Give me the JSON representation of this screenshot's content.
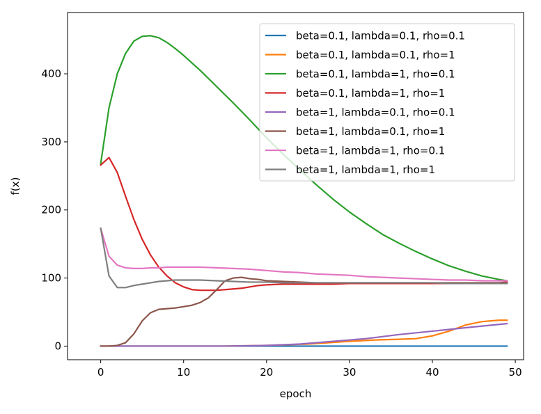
{
  "chart_data": {
    "type": "line",
    "title": "",
    "xlabel": "epoch",
    "ylabel": "f(x)",
    "xlim": [
      -4,
      51
    ],
    "ylim": [
      -20,
      490
    ],
    "xticks": [
      0,
      10,
      20,
      30,
      40,
      50
    ],
    "yticks": [
      0,
      100,
      200,
      300,
      400
    ],
    "grid": false,
    "legend_position": "top-right",
    "series": [
      {
        "name": "beta=0.1, lambda=0.1, rho=0.1",
        "color": "#1f77b4",
        "x": [
          0,
          10,
          20,
          30,
          40,
          49
        ],
        "y": [
          0,
          0,
          0,
          0,
          0,
          0
        ]
      },
      {
        "name": "beta=0.1, lambda=0.1, rho=1",
        "color": "#ff7f0e",
        "x": [
          0,
          5,
          10,
          15,
          20,
          25,
          30,
          33,
          36,
          38,
          40,
          42,
          44,
          46,
          48,
          49
        ],
        "y": [
          0,
          0,
          0,
          0,
          1,
          3,
          7,
          9,
          10,
          11,
          15,
          22,
          31,
          36,
          38,
          38
        ]
      },
      {
        "name": "beta=0.1, lambda=1, rho=0.1",
        "color": "#2ca02c",
        "x": [
          0,
          1,
          2,
          3,
          4,
          5,
          6,
          7,
          8,
          9,
          10,
          12,
          14,
          16,
          18,
          20,
          22,
          24,
          26,
          28,
          30,
          32,
          34,
          36,
          38,
          40,
          42,
          44,
          46,
          48,
          49
        ],
        "y": [
          268,
          350,
          400,
          430,
          448,
          455,
          456,
          453,
          446,
          437,
          427,
          405,
          381,
          357,
          332,
          306,
          282,
          259,
          237,
          216,
          197,
          180,
          164,
          151,
          139,
          128,
          118,
          110,
          103,
          98,
          96
        ]
      },
      {
        "name": "beta=0.1, lambda=1, rho=1",
        "color": "#d62728",
        "x": [
          0,
          1,
          2,
          3,
          4,
          5,
          6,
          7,
          8,
          9,
          10,
          11,
          12,
          13,
          14,
          15,
          16,
          17,
          18,
          19,
          20,
          22,
          24,
          26,
          28,
          30,
          32,
          34,
          36,
          38,
          40,
          42,
          44,
          46,
          48,
          49
        ],
        "y": [
          266,
          277,
          255,
          220,
          186,
          157,
          134,
          116,
          103,
          93,
          87,
          83,
          82,
          82,
          82,
          83,
          84,
          85,
          87,
          89,
          90,
          91,
          91,
          91,
          91,
          92,
          92,
          92,
          92,
          92,
          92,
          92,
          92,
          93,
          93,
          94
        ]
      },
      {
        "name": "beta=1, lambda=0.1, rho=0.1",
        "color": "#9467bd",
        "x": [
          0,
          5,
          10,
          15,
          20,
          24,
          28,
          32,
          36,
          40,
          44,
          49
        ],
        "y": [
          0,
          0,
          0,
          0,
          1,
          3,
          7,
          11,
          17,
          22,
          27,
          33
        ]
      },
      {
        "name": "beta=1, lambda=0.1, rho=1",
        "color": "#8c564b",
        "x": [
          0,
          1,
          2,
          3,
          4,
          5,
          6,
          7,
          8,
          9,
          10,
          11,
          12,
          13,
          14,
          15,
          16,
          17,
          18,
          19,
          20,
          22,
          24,
          26,
          28,
          30,
          32,
          34,
          36,
          38,
          40,
          42,
          44,
          46,
          48,
          49
        ],
        "y": [
          0,
          0,
          1,
          5,
          18,
          37,
          49,
          54,
          55,
          56,
          58,
          60,
          64,
          71,
          83,
          96,
          100,
          101,
          99,
          98,
          96,
          95,
          94,
          93,
          93,
          93,
          93,
          93,
          93,
          93,
          93,
          93,
          93,
          93,
          93,
          93
        ]
      },
      {
        "name": "beta=1, lambda=1, rho=0.1",
        "color": "#e377c2",
        "x": [
          0,
          1,
          2,
          3,
          4,
          5,
          6,
          7,
          8,
          9,
          10,
          12,
          14,
          16,
          18,
          20,
          22,
          24,
          26,
          28,
          30,
          32,
          34,
          36,
          38,
          40,
          42,
          44,
          46,
          48,
          49
        ],
        "y": [
          173,
          132,
          119,
          115,
          114,
          114,
          115,
          115,
          116,
          116,
          116,
          116,
          115,
          114,
          113,
          111,
          109,
          108,
          106,
          105,
          104,
          102,
          101,
          100,
          99,
          98,
          97,
          97,
          96,
          96,
          96
        ]
      },
      {
        "name": "beta=1, lambda=1, rho=1",
        "color": "#7f7f7f",
        "x": [
          0,
          1,
          2,
          3,
          4,
          5,
          6,
          7,
          8,
          9,
          10,
          11,
          12,
          14,
          16,
          18,
          20,
          22,
          24,
          26,
          28,
          30,
          32,
          34,
          36,
          38,
          40,
          42,
          44,
          46,
          48,
          49
        ],
        "y": [
          173,
          103,
          86,
          86,
          89,
          91,
          93,
          95,
          96,
          97,
          97,
          97,
          97,
          96,
          95,
          94,
          94,
          93,
          93,
          93,
          93,
          93,
          93,
          93,
          93,
          93,
          93,
          92,
          92,
          92,
          92,
          92
        ]
      }
    ]
  }
}
